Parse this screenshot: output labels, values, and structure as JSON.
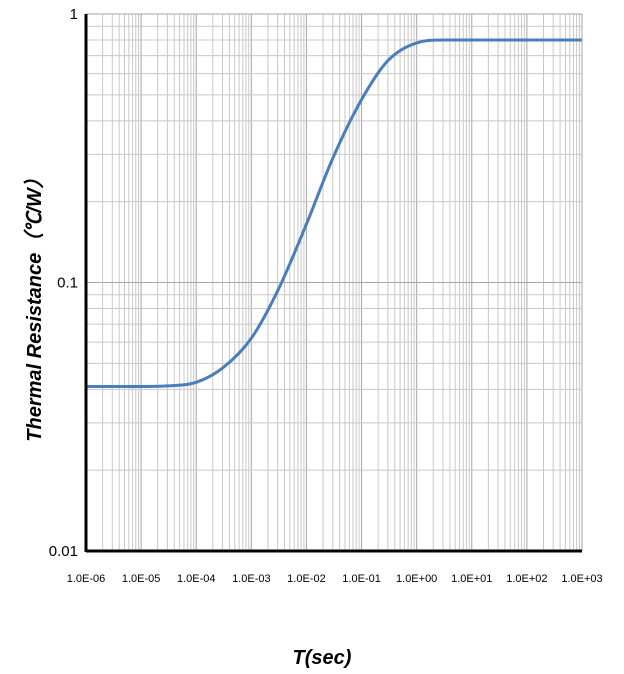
{
  "chart_data": {
    "type": "line",
    "xlabel": "T(sec)",
    "ylabel": "Thermal Resistance（℃/W）",
    "x_scale": "log",
    "y_scale": "log",
    "xlim": [
      1e-06,
      1000
    ],
    "ylim": [
      0.01,
      1
    ],
    "grid": true,
    "legend": "none",
    "x_tick_labels": [
      "1.0E-06",
      "1.0E-05",
      "1.0E-04",
      "1.0E-03",
      "1.0E-02",
      "1.0E-01",
      "1.0E+00",
      "1.0E+01",
      "1.0E+02",
      "1.0E+03"
    ],
    "y_tick_labels": [
      "0.01",
      "0.1",
      "1"
    ],
    "line_color": "#4a7ebb",
    "series": [
      {
        "x": [
          1e-06,
          1e-05,
          3e-05,
          0.0001,
          0.0003,
          0.001,
          0.003,
          0.01,
          0.03,
          0.1,
          0.3,
          1.0,
          3.0,
          10.0,
          100.0,
          1000.0
        ],
        "y": [
          0.041,
          0.041,
          0.0412,
          0.0425,
          0.048,
          0.062,
          0.093,
          0.165,
          0.29,
          0.48,
          0.67,
          0.78,
          0.8,
          0.8,
          0.8,
          0.8
        ]
      }
    ]
  }
}
